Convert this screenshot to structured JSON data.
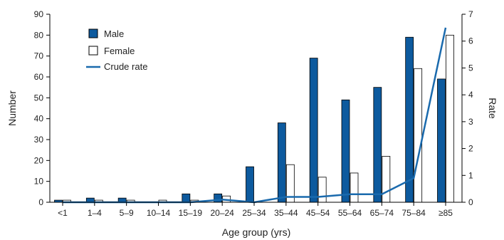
{
  "colors": {
    "male": "#0d5a9e",
    "female": "#ffffff",
    "line": "#1a6aad",
    "stroke": "#000000"
  },
  "chart_data": {
    "type": "bar",
    "categories": [
      "<1",
      "1–4",
      "5–9",
      "10–14",
      "15–19",
      "20–24",
      "25–34",
      "35–44",
      "45–54",
      "55–64",
      "65–74",
      "75–84",
      "≥85"
    ],
    "series": [
      {
        "name": "Male",
        "kind": "bar",
        "axis": "left",
        "values": [
          1,
          2,
          2,
          0,
          4,
          4,
          17,
          38,
          69,
          49,
          55,
          79,
          59
        ]
      },
      {
        "name": "Female",
        "kind": "bar",
        "axis": "left",
        "values": [
          1,
          1,
          1,
          1,
          1,
          3,
          0,
          18,
          12,
          14,
          22,
          64,
          80
        ]
      },
      {
        "name": "Crude rate",
        "kind": "line",
        "axis": "right",
        "values": [
          0,
          0,
          0,
          0,
          0,
          0.1,
          0,
          0.2,
          0.2,
          0.3,
          0.3,
          0.9,
          6.5
        ]
      }
    ],
    "xlabel": "Age group (yrs)",
    "ylabel": "Number",
    "y2label": "Rate",
    "ylim": [
      0,
      90
    ],
    "yticks": [
      0,
      10,
      20,
      30,
      40,
      50,
      60,
      70,
      80,
      90
    ],
    "y2lim": [
      0,
      7
    ],
    "y2ticks": [
      0,
      1,
      2,
      3,
      4,
      5,
      6,
      7
    ],
    "grid": false,
    "legend_position": "top-left",
    "legend": [
      {
        "label": "Male",
        "kind": "filled-box"
      },
      {
        "label": "Female",
        "kind": "open-box"
      },
      {
        "label": "Crude rate",
        "kind": "line"
      }
    ]
  }
}
